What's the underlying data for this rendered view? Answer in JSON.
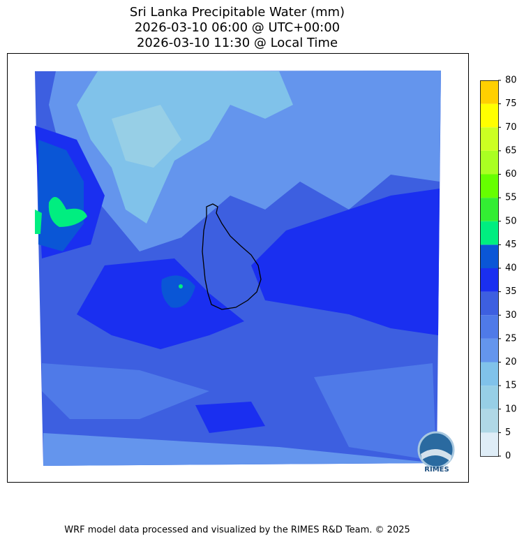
{
  "title": [
    "Sri Lanka Precipitable Water (mm)",
    "2026-03-10 06:00 @ UTC+00:00",
    "2026-03-10 11:30 @ Local Time"
  ],
  "colorbar": {
    "ticks": [
      0,
      5,
      10,
      15,
      20,
      25,
      30,
      35,
      40,
      45,
      50,
      55,
      60,
      65,
      70,
      75,
      80
    ],
    "colors": [
      "#dfedf7",
      "#b0d8e6",
      "#97cfe6",
      "#80c2ea",
      "#6495ed",
      "#4f7ae8",
      "#3d5fe0",
      "#1a2ff0",
      "#0a56d6",
      "#00ee80",
      "#33ee33",
      "#66ff00",
      "#aaff22",
      "#ccff22",
      "#ffff00",
      "#ffd000"
    ]
  },
  "logo": "RIMES",
  "footer": "WRF model data processed and visualized by the RIMES R&D Team. © 2025"
}
